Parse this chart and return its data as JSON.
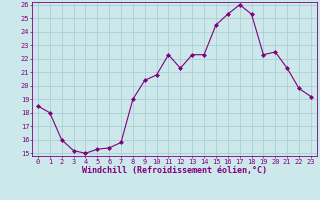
{
  "x_values": [
    0,
    1,
    2,
    3,
    4,
    5,
    6,
    7,
    8,
    9,
    10,
    11,
    12,
    13,
    14,
    15,
    16,
    17,
    18,
    19,
    20,
    21,
    22,
    23
  ],
  "y_values": [
    18.5,
    18.0,
    16.0,
    15.2,
    15.0,
    15.3,
    15.4,
    15.8,
    19.0,
    20.4,
    20.8,
    22.3,
    21.3,
    22.3,
    22.3,
    24.5,
    25.3,
    26.0,
    25.3,
    22.3,
    22.5,
    21.3,
    19.8,
    19.2
  ],
  "line_color": "#800080",
  "marker": "D",
  "marker_size": 2.0,
  "bg_color": "#cce8ea",
  "grid_color": "#aacfd4",
  "xlabel": "Windchill (Refroidissement éolien,°C)",
  "ylim_min": 15,
  "ylim_max": 26,
  "xlim_min": -0.5,
  "xlim_max": 23.5,
  "yticks": [
    15,
    16,
    17,
    18,
    19,
    20,
    21,
    22,
    23,
    24,
    25,
    26
  ],
  "xticks": [
    0,
    1,
    2,
    3,
    4,
    5,
    6,
    7,
    8,
    9,
    10,
    11,
    12,
    13,
    14,
    15,
    16,
    17,
    18,
    19,
    20,
    21,
    22,
    23
  ],
  "tick_color": "#800080",
  "axes_color": "#800080",
  "font_family": "monospace",
  "tick_fontsize": 5.0,
  "xlabel_fontsize": 6.0
}
